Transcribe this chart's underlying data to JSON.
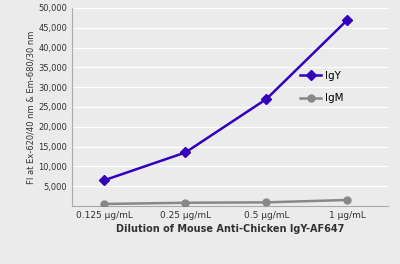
{
  "x_labels": [
    "0.125 µg/mL",
    "0.25 µg/mL",
    "0.5 µg/mL",
    "1 µg/mL"
  ],
  "x_values": [
    0,
    1,
    2,
    3
  ],
  "IgY_values": [
    6500,
    13500,
    27000,
    47000
  ],
  "IgM_values": [
    500,
    800,
    900,
    1500
  ],
  "IgY_color": "#3300BB",
  "IgM_color": "#888888",
  "ylabel": "FI at Ex-620/40 nm & Em-680/30 nm",
  "xlabel": "Dilution of Mouse Anti-Chicken IgY-AF647",
  "ylim": [
    0,
    50000
  ],
  "yticks": [
    5000,
    10000,
    15000,
    20000,
    25000,
    30000,
    35000,
    40000,
    45000,
    50000
  ],
  "title": "",
  "legend_labels": [
    "IgY",
    "IgM"
  ],
  "background_color": "#ebebeb",
  "grid_color": "#ffffff",
  "IgY_marker": "D",
  "IgM_marker": "o",
  "linewidth": 1.8,
  "marker_size_IgY": 5,
  "marker_size_IgM": 5
}
